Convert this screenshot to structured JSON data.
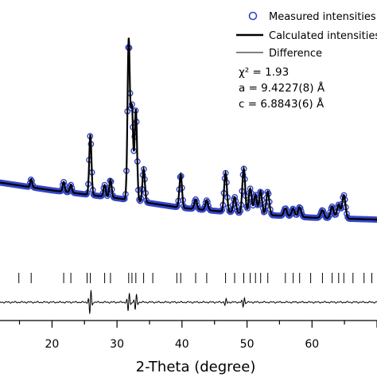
{
  "chart_data": {
    "type": "scatter",
    "title": "",
    "xlabel": "2-Theta (degree)",
    "ylabel": "",
    "xlim": [
      12,
      70
    ],
    "ylim": [
      0,
      100
    ],
    "x_ticks": [
      20,
      30,
      40,
      50,
      60
    ],
    "legend": {
      "placement": "top-right",
      "entries": [
        {
          "name": "Measured intensities",
          "style": "open-circle",
          "color": "#3446c8"
        },
        {
          "name": "Calculated intensities",
          "style": "thick-line",
          "color": "#000000"
        },
        {
          "name": "Difference",
          "style": "thin-line",
          "color": "#000000"
        }
      ]
    },
    "annotations": [
      "χ² = 1.93",
      "a = 9.4227(8) Å",
      "c = 6.8843(6) Å"
    ],
    "background": [
      [
        12,
        41
      ],
      [
        20,
        37
      ],
      [
        30,
        33
      ],
      [
        40,
        28
      ],
      [
        50,
        25
      ],
      [
        60,
        23
      ],
      [
        70,
        22
      ]
    ],
    "peaks": [
      {
        "x": 16.8,
        "h": 4
      },
      {
        "x": 21.8,
        "h": 5
      },
      {
        "x": 22.9,
        "h": 4
      },
      {
        "x": 25.9,
        "h": 31
      },
      {
        "x": 28.1,
        "h": 6
      },
      {
        "x": 29.0,
        "h": 9
      },
      {
        "x": 31.8,
        "h": 82
      },
      {
        "x": 32.3,
        "h": 47
      },
      {
        "x": 32.9,
        "h": 47
      },
      {
        "x": 34.1,
        "h": 17
      },
      {
        "x": 39.8,
        "h": 17
      },
      {
        "x": 42.1,
        "h": 5
      },
      {
        "x": 43.8,
        "h": 5
      },
      {
        "x": 46.7,
        "h": 20
      },
      {
        "x": 48.1,
        "h": 8
      },
      {
        "x": 49.5,
        "h": 23
      },
      {
        "x": 50.5,
        "h": 13
      },
      {
        "x": 51.3,
        "h": 10
      },
      {
        "x": 52.1,
        "h": 12
      },
      {
        "x": 53.2,
        "h": 12
      },
      {
        "x": 55.9,
        "h": 4
      },
      {
        "x": 57.1,
        "h": 4
      },
      {
        "x": 58.1,
        "h": 5
      },
      {
        "x": 61.6,
        "h": 4
      },
      {
        "x": 63.1,
        "h": 6
      },
      {
        "x": 64.1,
        "h": 7
      },
      {
        "x": 64.9,
        "h": 12
      }
    ],
    "bragg_positions": [
      14.9,
      16.8,
      21.8,
      22.9,
      25.4,
      25.9,
      28.1,
      29.0,
      31.8,
      32.3,
      32.9,
      34.1,
      35.5,
      39.2,
      39.8,
      42.1,
      43.8,
      46.7,
      48.1,
      49.5,
      50.5,
      51.3,
      52.1,
      53.2,
      55.9,
      57.1,
      58.1,
      59.8,
      61.6,
      63.1,
      64.1,
      64.9,
      66.3,
      68.0,
      69.2
    ],
    "difference": {
      "baseline": 0,
      "features": [
        {
          "x": 25.9,
          "amp": 8
        },
        {
          "x": 31.8,
          "amp": 6
        },
        {
          "x": 32.9,
          "amp": 5
        },
        {
          "x": 49.5,
          "amp": 3
        },
        {
          "x": 46.7,
          "amp": 2
        }
      ]
    },
    "grid": false
  }
}
